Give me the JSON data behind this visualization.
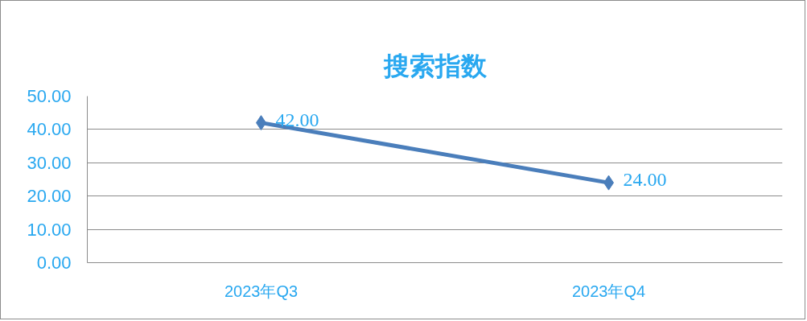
{
  "chart_data": {
    "type": "line",
    "title": "搜索指数",
    "categories": [
      "2023年Q3",
      "2023年Q4"
    ],
    "series": [
      {
        "color": "#4a7ebb",
        "values": [
          42,
          24
        ],
        "value_labels": [
          "42.00",
          "24.00"
        ]
      }
    ],
    "ylim": [
      0,
      50
    ],
    "yticks": [
      {
        "value": 0,
        "label": "0.00"
      },
      {
        "value": 10,
        "label": "10.00"
      },
      {
        "value": 20,
        "label": "20.00"
      },
      {
        "value": 30,
        "label": "30.00"
      },
      {
        "value": 40,
        "label": "40.00"
      },
      {
        "value": 50,
        "label": "50.00"
      }
    ],
    "grid": "y",
    "marker": "diamond",
    "line_style": "solid"
  }
}
